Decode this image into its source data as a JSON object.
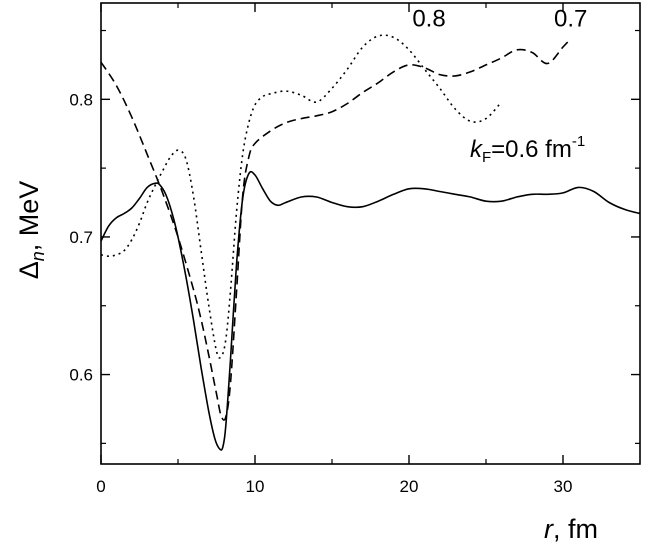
{
  "chart_data": {
    "type": "line",
    "xlabel": {
      "var": "r",
      "unit": ", fm"
    },
    "ylabel": {
      "var": "Δ",
      "sub": "n",
      "unit": ", MeV"
    },
    "xlim": [
      0,
      35
    ],
    "ylim": [
      0.535,
      0.87
    ],
    "xticks": [
      0,
      10,
      20,
      30
    ],
    "xtick_labels": [
      "0",
      "10",
      "20",
      "30"
    ],
    "yticks": [
      0.6,
      0.7,
      0.8
    ],
    "ytick_labels": [
      "0.6",
      "0.7",
      "0.8"
    ],
    "grid": false,
    "annotations": [
      {
        "text": "0.8",
        "x": 21.3,
        "y": 0.853
      },
      {
        "text": "0.7",
        "x": 30.5,
        "y": 0.853
      }
    ],
    "kf_label": {
      "var": "k",
      "sub": "F",
      "text": "=0.6 fm",
      "sup": "-1",
      "x": 27.7,
      "y": 0.758
    },
    "series": [
      {
        "style": "solid",
        "x": [
          0,
          0.5,
          1,
          1.5,
          2,
          2.5,
          3,
          3.5,
          3.8,
          4.2,
          4.6,
          5,
          5.5,
          6,
          6.5,
          7,
          7.4,
          7.7,
          7.9,
          8.1,
          8.4,
          8.8,
          9.2,
          9.6,
          10,
          10.5,
          11,
          11.5,
          12,
          13,
          14,
          15,
          16,
          17,
          18,
          19,
          20,
          21,
          22,
          23,
          24,
          25,
          26,
          27,
          28,
          29,
          30,
          31,
          32,
          33,
          34,
          35
        ],
        "y": [
          0.697,
          0.708,
          0.714,
          0.717,
          0.721,
          0.728,
          0.736,
          0.739,
          0.738,
          0.731,
          0.718,
          0.7,
          0.672,
          0.64,
          0.605,
          0.573,
          0.553,
          0.546,
          0.547,
          0.562,
          0.61,
          0.68,
          0.728,
          0.746,
          0.745,
          0.735,
          0.726,
          0.723,
          0.725,
          0.729,
          0.729,
          0.725,
          0.722,
          0.722,
          0.726,
          0.731,
          0.735,
          0.735,
          0.733,
          0.731,
          0.729,
          0.726,
          0.726,
          0.729,
          0.731,
          0.731,
          0.732,
          0.736,
          0.733,
          0.725,
          0.72,
          0.717
        ]
      },
      {
        "style": "dashed",
        "x": [
          0,
          1,
          2,
          3,
          4,
          5,
          6,
          6.5,
          7,
          7.5,
          7.8,
          8.1,
          8.4,
          8.8,
          9.2,
          9.6,
          10,
          11,
          12,
          13,
          14,
          15,
          16,
          17,
          18,
          19,
          20,
          21,
          22,
          23,
          24,
          25,
          26,
          27,
          28,
          29,
          30,
          30.5
        ],
        "y": [
          0.827,
          0.81,
          0.787,
          0.76,
          0.732,
          0.7,
          0.662,
          0.64,
          0.614,
          0.586,
          0.57,
          0.569,
          0.593,
          0.66,
          0.73,
          0.758,
          0.768,
          0.777,
          0.783,
          0.786,
          0.788,
          0.791,
          0.797,
          0.805,
          0.812,
          0.82,
          0.825,
          0.823,
          0.818,
          0.817,
          0.82,
          0.825,
          0.83,
          0.836,
          0.834,
          0.826,
          0.838,
          0.844
        ]
      },
      {
        "style": "dotted",
        "x": [
          0,
          0.5,
          1,
          1.5,
          2,
          2.5,
          3,
          3.5,
          4,
          4.5,
          5,
          5.5,
          6,
          6.5,
          7,
          7.5,
          7.8,
          8.1,
          8.4,
          8.8,
          9.2,
          9.6,
          10,
          10.5,
          11,
          12,
          13,
          14,
          15,
          16,
          17,
          18,
          19,
          20,
          21,
          22,
          23,
          24,
          25,
          26
        ],
        "y": [
          0.687,
          0.686,
          0.687,
          0.69,
          0.698,
          0.71,
          0.725,
          0.737,
          0.748,
          0.758,
          0.763,
          0.757,
          0.73,
          0.69,
          0.65,
          0.617,
          0.613,
          0.625,
          0.66,
          0.718,
          0.76,
          0.783,
          0.796,
          0.802,
          0.804,
          0.806,
          0.803,
          0.798,
          0.808,
          0.822,
          0.838,
          0.846,
          0.845,
          0.836,
          0.822,
          0.808,
          0.793,
          0.784,
          0.786,
          0.798
        ]
      }
    ]
  }
}
